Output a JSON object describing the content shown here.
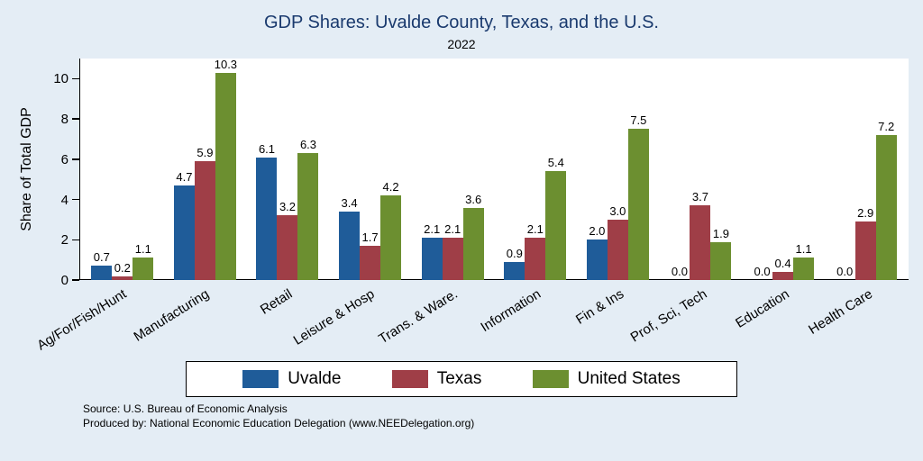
{
  "header": {
    "title": "GDP Shares: Uvalde County, Texas, and the U.S.",
    "subtitle": "2022"
  },
  "colors": {
    "background": "#e4edf5",
    "title": "#1a3a6e",
    "uvalde": "#1f5c99",
    "texas": "#9f3e47",
    "united_states": "#6c8f30"
  },
  "chart_data": {
    "type": "bar",
    "title": "GDP Shares: Uvalde County, Texas, and the U.S.",
    "subtitle": "2022",
    "ylabel": "Share of Total GDP",
    "xlabel": "",
    "ylim": [
      0,
      11
    ],
    "yticks": [
      0,
      2,
      4,
      6,
      8,
      10
    ],
    "grid": false,
    "legend_position": "bottom",
    "categories": [
      "Ag/For/Fish/Hunt",
      "Manufacturing",
      "Retail",
      "Leisure & Hosp",
      "Trans. & Ware.",
      "Information",
      "Fin & Ins",
      "Prof, Sci, Tech",
      "Education",
      "Health Care"
    ],
    "series": [
      {
        "name": "Uvalde",
        "color": "#1f5c99",
        "values": [
          0.7,
          4.7,
          6.1,
          3.4,
          2.1,
          0.9,
          2.0,
          0.0,
          0.0,
          0.0
        ]
      },
      {
        "name": "Texas",
        "color": "#9f3e47",
        "values": [
          0.2,
          5.9,
          3.2,
          1.7,
          2.1,
          2.1,
          3.0,
          3.7,
          0.4,
          2.9
        ]
      },
      {
        "name": "United States",
        "color": "#6c8f30",
        "values": [
          1.1,
          10.3,
          6.3,
          4.2,
          3.6,
          5.4,
          7.5,
          1.9,
          1.1,
          7.2
        ]
      }
    ]
  },
  "footer": {
    "source_line1": "Source: U.S. Bureau of Economic Analysis",
    "source_line2": "Produced by: National Economic Education Delegation (www.NEEDelegation.org)"
  }
}
